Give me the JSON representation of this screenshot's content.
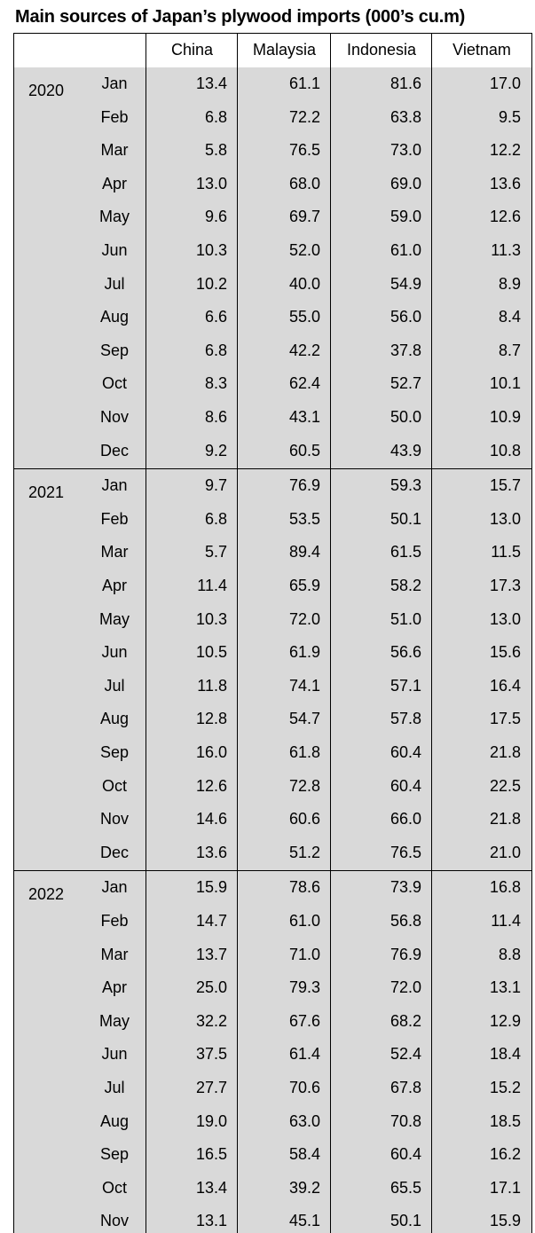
{
  "title": "Main sources of Japan’s plywood imports (000’s cu.m)",
  "table": {
    "header": [
      "China",
      "Malaysia",
      "Indonesia",
      "Vietnam"
    ],
    "groups": [
      {
        "year": "2020",
        "rows": [
          {
            "month": "Jan",
            "values": [
              "13.4",
              "61.1",
              "81.6",
              "17.0"
            ]
          },
          {
            "month": "Feb",
            "values": [
              "6.8",
              "72.2",
              "63.8",
              "9.5"
            ]
          },
          {
            "month": "Mar",
            "values": [
              "5.8",
              "76.5",
              "73.0",
              "12.2"
            ]
          },
          {
            "month": "Apr",
            "values": [
              "13.0",
              "68.0",
              "69.0",
              "13.6"
            ]
          },
          {
            "month": "May",
            "values": [
              "9.6",
              "69.7",
              "59.0",
              "12.6"
            ]
          },
          {
            "month": "Jun",
            "values": [
              "10.3",
              "52.0",
              "61.0",
              "11.3"
            ]
          },
          {
            "month": "Jul",
            "values": [
              "10.2",
              "40.0",
              "54.9",
              "8.9"
            ]
          },
          {
            "month": "Aug",
            "values": [
              "6.6",
              "55.0",
              "56.0",
              "8.4"
            ]
          },
          {
            "month": "Sep",
            "values": [
              "6.8",
              "42.2",
              "37.8",
              "8.7"
            ]
          },
          {
            "month": "Oct",
            "values": [
              "8.3",
              "62.4",
              "52.7",
              "10.1"
            ]
          },
          {
            "month": "Nov",
            "values": [
              "8.6",
              "43.1",
              "50.0",
              "10.9"
            ]
          },
          {
            "month": "Dec",
            "values": [
              "9.2",
              "60.5",
              "43.9",
              "10.8"
            ]
          }
        ]
      },
      {
        "year": "2021",
        "rows": [
          {
            "month": "Jan",
            "values": [
              "9.7",
              "76.9",
              "59.3",
              "15.7"
            ]
          },
          {
            "month": "Feb",
            "values": [
              "6.8",
              "53.5",
              "50.1",
              "13.0"
            ]
          },
          {
            "month": "Mar",
            "values": [
              "5.7",
              "89.4",
              "61.5",
              "11.5"
            ]
          },
          {
            "month": "Apr",
            "values": [
              "11.4",
              "65.9",
              "58.2",
              "17.3"
            ]
          },
          {
            "month": "May",
            "values": [
              "10.3",
              "72.0",
              "51.0",
              "13.0"
            ]
          },
          {
            "month": "Jun",
            "values": [
              "10.5",
              "61.9",
              "56.6",
              "15.6"
            ]
          },
          {
            "month": "Jul",
            "values": [
              "11.8",
              "74.1",
              "57.1",
              "16.4"
            ]
          },
          {
            "month": "Aug",
            "values": [
              "12.8",
              "54.7",
              "57.8",
              "17.5"
            ]
          },
          {
            "month": "Sep",
            "values": [
              "16.0",
              "61.8",
              "60.4",
              "21.8"
            ]
          },
          {
            "month": "Oct",
            "values": [
              "12.6",
              "72.8",
              "60.4",
              "22.5"
            ]
          },
          {
            "month": "Nov",
            "values": [
              "14.6",
              "60.6",
              "66.0",
              "21.8"
            ]
          },
          {
            "month": "Dec",
            "values": [
              "13.6",
              "51.2",
              "76.5",
              "21.0"
            ]
          }
        ]
      },
      {
        "year": "2022",
        "rows": [
          {
            "month": "Jan",
            "values": [
              "15.9",
              "78.6",
              "73.9",
              "16.8"
            ]
          },
          {
            "month": "Feb",
            "values": [
              "14.7",
              "61.0",
              "56.8",
              "11.4"
            ]
          },
          {
            "month": "Mar",
            "values": [
              "13.7",
              "71.0",
              "76.9",
              "8.8"
            ]
          },
          {
            "month": "Apr",
            "values": [
              "25.0",
              "79.3",
              "72.0",
              "13.1"
            ]
          },
          {
            "month": "May",
            "values": [
              "32.2",
              "67.6",
              "68.2",
              "12.9"
            ]
          },
          {
            "month": "Jun",
            "values": [
              "37.5",
              "61.4",
              "52.4",
              "18.4"
            ]
          },
          {
            "month": "Jul",
            "values": [
              "27.7",
              "70.6",
              "67.8",
              "15.2"
            ]
          },
          {
            "month": "Aug",
            "values": [
              "19.0",
              "63.0",
              "70.8",
              "18.5"
            ]
          },
          {
            "month": "Sep",
            "values": [
              "16.5",
              "58.4",
              "60.4",
              "16.2"
            ]
          },
          {
            "month": "Oct",
            "values": [
              "13.4",
              "39.2",
              "65.5",
              "17.1"
            ]
          },
          {
            "month": "Nov",
            "values": [
              "13.1",
              "45.1",
              "50.1",
              "15.9"
            ]
          }
        ]
      }
    ]
  }
}
